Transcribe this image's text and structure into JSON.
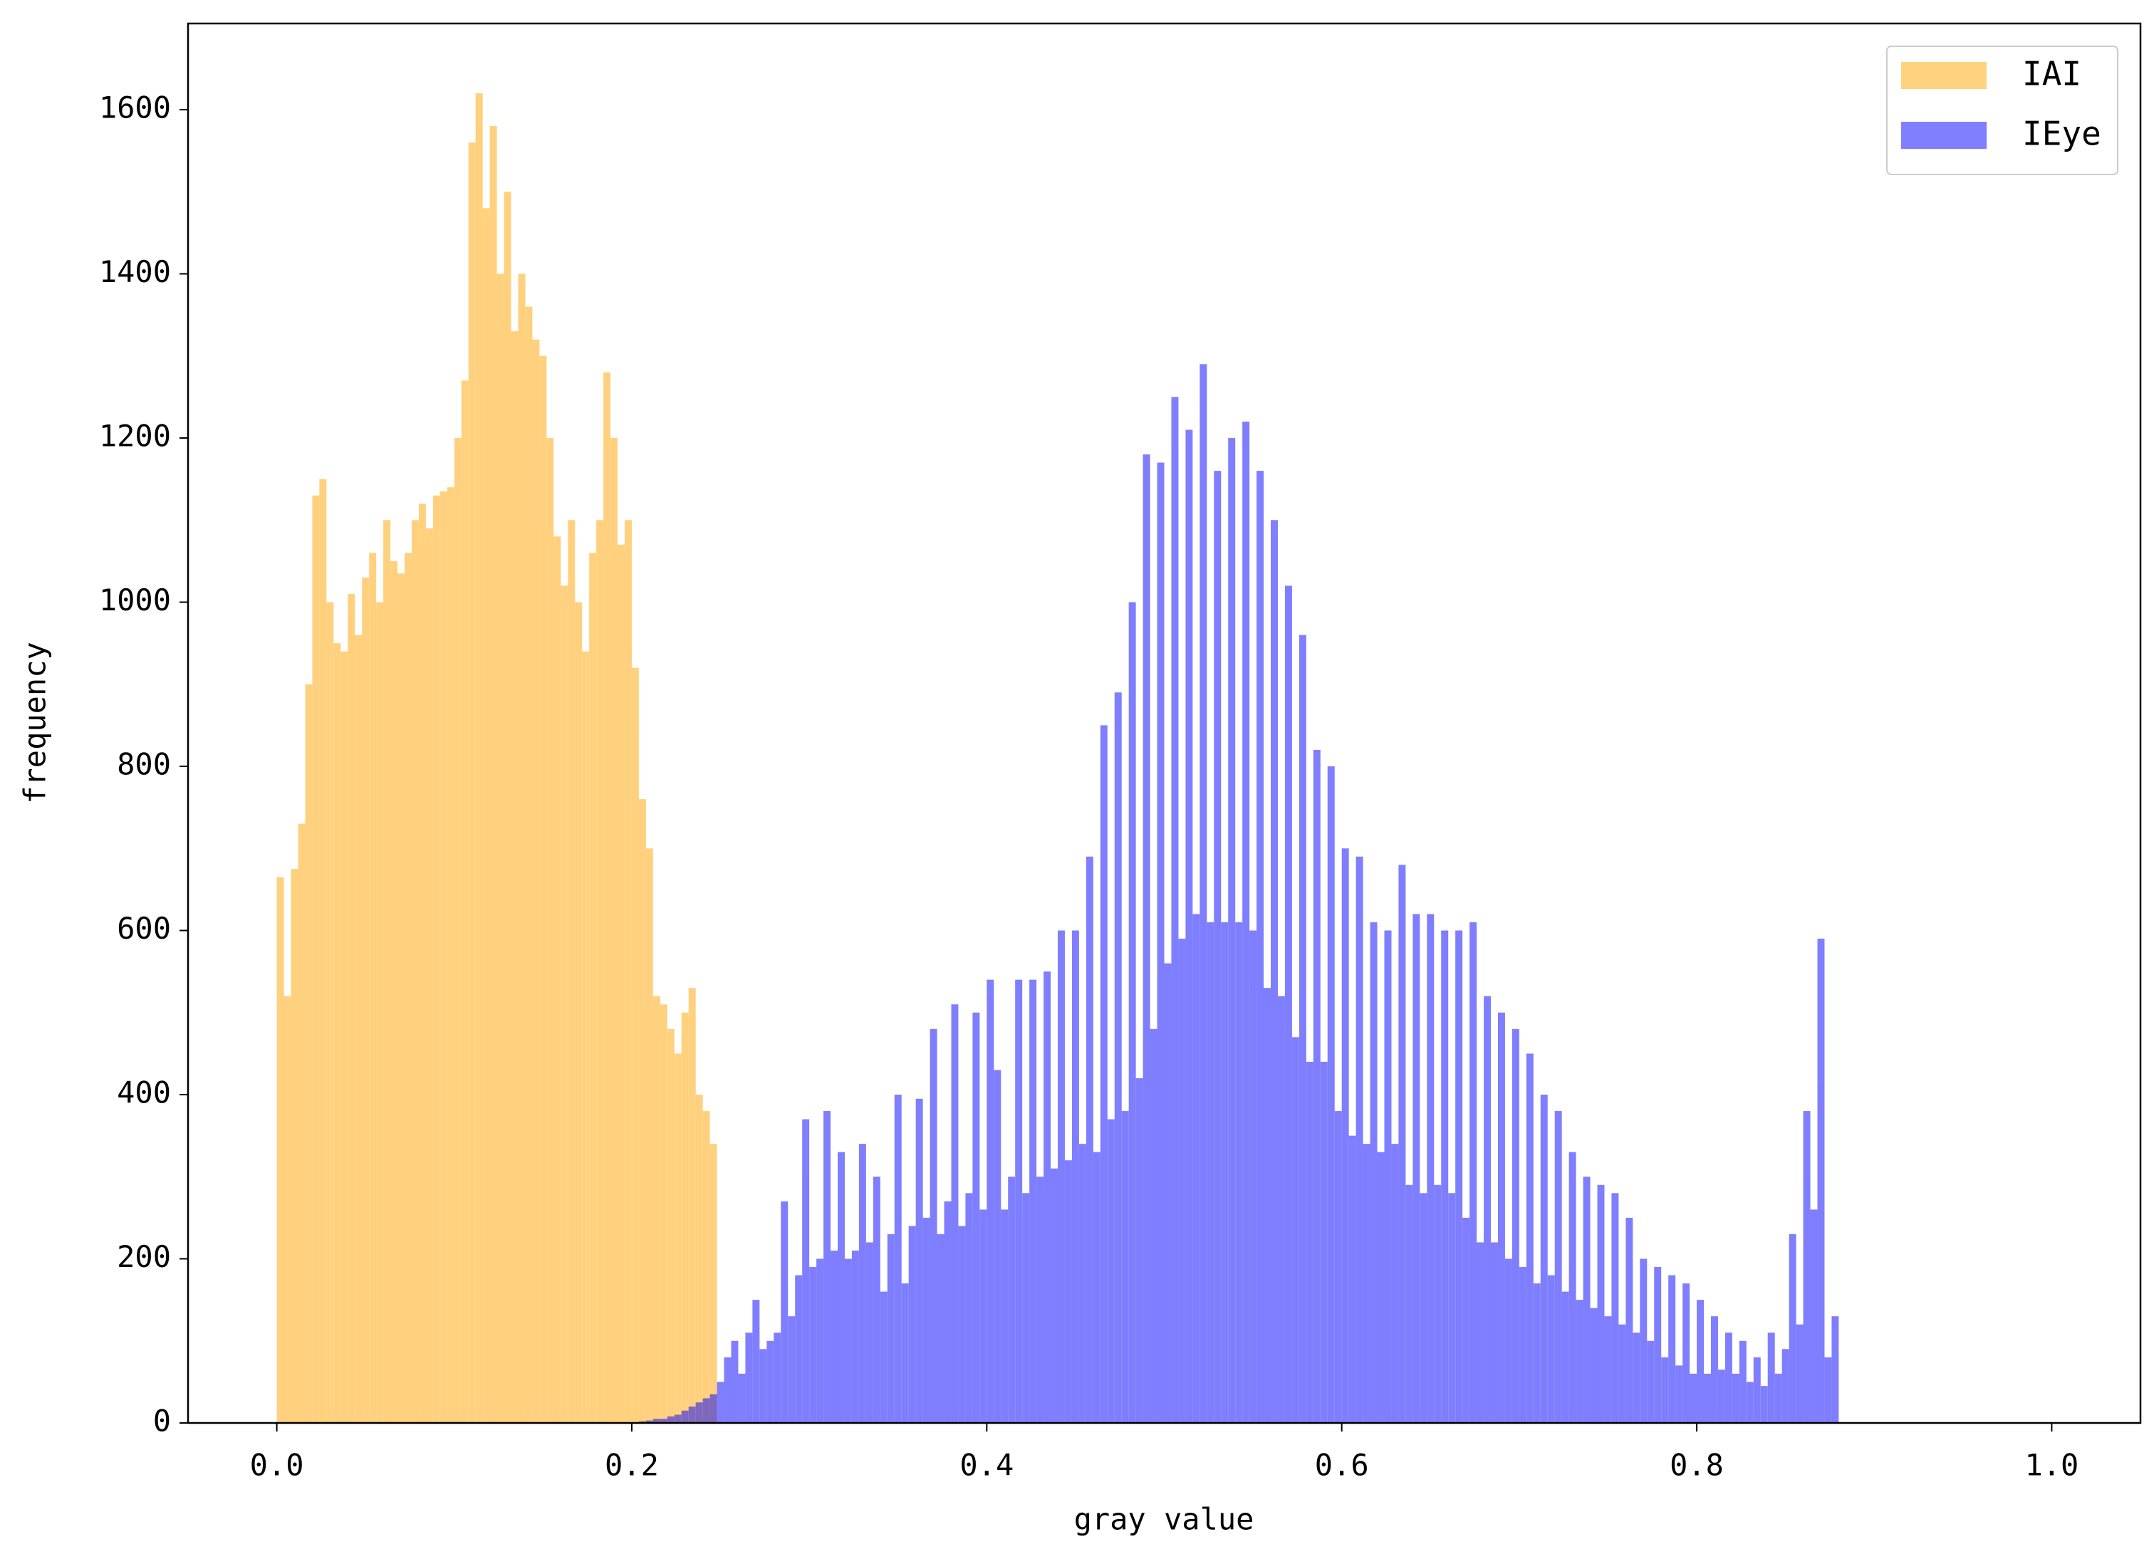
{
  "chart_data": {
    "type": "histogram",
    "xlabel": "gray value",
    "ylabel": "frequency",
    "xlim": [
      -0.05,
      1.05
    ],
    "ylim": [
      0,
      1705
    ],
    "xticks": [
      {
        "value": 0,
        "label": "0.0"
      },
      0.2,
      0.4,
      0.6,
      0.8,
      {
        "value": 1,
        "label": "1.0"
      }
    ],
    "yticks": [
      0,
      200,
      400,
      600,
      800,
      1000,
      1200,
      1400,
      1600
    ],
    "legend": "upper right",
    "opacity": 0.5,
    "series": [
      {
        "name": "IAI",
        "color": "#ffa500",
        "bins": [
          0,
          0.004,
          0.008,
          0.012,
          0.016,
          0.02,
          0.024,
          0.028,
          0.032,
          0.036,
          0.04,
          0.044,
          0.048,
          0.052,
          0.056,
          0.06,
          0.064,
          0.068,
          0.072,
          0.076,
          0.08,
          0.084,
          0.088,
          0.092,
          0.096,
          0.1,
          0.104,
          0.108,
          0.112,
          0.116,
          0.12,
          0.124,
          0.128,
          0.132,
          0.136,
          0.14,
          0.144,
          0.148,
          0.152,
          0.156,
          0.16,
          0.164,
          0.168,
          0.172,
          0.176,
          0.18,
          0.184,
          0.188,
          0.192,
          0.196,
          0.2,
          0.204,
          0.208,
          0.212,
          0.216,
          0.22,
          0.224,
          0.228,
          0.232,
          0.236,
          0.24,
          0.244,
          0.248
        ],
        "values": [
          665,
          520,
          675,
          730,
          900,
          1130,
          1150,
          1000,
          950,
          940,
          1010,
          960,
          1030,
          1060,
          1000,
          1100,
          1050,
          1035,
          1060,
          1100,
          1120,
          1090,
          1130,
          1135,
          1140,
          1200,
          1270,
          1560,
          1620,
          1480,
          1580,
          1400,
          1500,
          1330,
          1400,
          1360,
          1320,
          1300,
          1200,
          1080,
          1020,
          1100,
          1000,
          940,
          1060,
          1100,
          1280,
          1200,
          1070,
          1100,
          920,
          760,
          700,
          520,
          510,
          480,
          450,
          500,
          530,
          400,
          380,
          340
        ]
      },
      {
        "name": "IEye",
        "color": "#0000ff",
        "bins": [
          0.204,
          0.208,
          0.212,
          0.216,
          0.22,
          0.224,
          0.228,
          0.232,
          0.236,
          0.24,
          0.244,
          0.248,
          0.252,
          0.256,
          0.26,
          0.264,
          0.268,
          0.272,
          0.276,
          0.28,
          0.284,
          0.288,
          0.292,
          0.296,
          0.3,
          0.304,
          0.308,
          0.312,
          0.316,
          0.32,
          0.324,
          0.328,
          0.332,
          0.336,
          0.34,
          0.344,
          0.348,
          0.352,
          0.356,
          0.36,
          0.364,
          0.368,
          0.372,
          0.376,
          0.38,
          0.384,
          0.388,
          0.392,
          0.396,
          0.4,
          0.404,
          0.408,
          0.412,
          0.416,
          0.42,
          0.424,
          0.428,
          0.432,
          0.436,
          0.44,
          0.444,
          0.448,
          0.452,
          0.456,
          0.46,
          0.464,
          0.468,
          0.472,
          0.476,
          0.48,
          0.484,
          0.488,
          0.492,
          0.496,
          0.5,
          0.504,
          0.508,
          0.512,
          0.516,
          0.52,
          0.524,
          0.528,
          0.532,
          0.536,
          0.54,
          0.544,
          0.548,
          0.552,
          0.556,
          0.56,
          0.564,
          0.568,
          0.572,
          0.576,
          0.58,
          0.584,
          0.588,
          0.592,
          0.596,
          0.6,
          0.604,
          0.608,
          0.612,
          0.616,
          0.62,
          0.624,
          0.628,
          0.632,
          0.636,
          0.64,
          0.644,
          0.648,
          0.652,
          0.656,
          0.66,
          0.664,
          0.668,
          0.672,
          0.676,
          0.68,
          0.684,
          0.688,
          0.692,
          0.696,
          0.7,
          0.704,
          0.708,
          0.712,
          0.716,
          0.72,
          0.724,
          0.728,
          0.732,
          0.736,
          0.74,
          0.744,
          0.748,
          0.752,
          0.756,
          0.76,
          0.764,
          0.768,
          0.772,
          0.776,
          0.78,
          0.784,
          0.788,
          0.792,
          0.796,
          0.8,
          0.804,
          0.808,
          0.812,
          0.816,
          0.82,
          0.824,
          0.828,
          0.832,
          0.836,
          0.84,
          0.844,
          0.848,
          0.852,
          0.856,
          0.86,
          0.864,
          0.868,
          0.872,
          0.876,
          0.88
        ],
        "values": [
          2,
          3,
          5,
          5,
          8,
          10,
          15,
          20,
          25,
          30,
          35,
          50,
          80,
          100,
          60,
          110,
          150,
          90,
          100,
          110,
          270,
          130,
          180,
          370,
          190,
          200,
          380,
          210,
          330,
          200,
          210,
          340,
          220,
          300,
          160,
          230,
          400,
          170,
          240,
          395,
          250,
          480,
          230,
          270,
          510,
          240,
          280,
          500,
          260,
          540,
          430,
          260,
          300,
          540,
          280,
          540,
          300,
          550,
          310,
          600,
          320,
          600,
          340,
          690,
          330,
          850,
          370,
          890,
          380,
          1000,
          420,
          1180,
          480,
          1170,
          560,
          1250,
          590,
          1210,
          620,
          1290,
          610,
          1160,
          610,
          1200,
          610,
          1220,
          600,
          1160,
          530,
          1100,
          520,
          1020,
          470,
          960,
          440,
          820,
          440,
          800,
          380,
          700,
          350,
          690,
          340,
          610,
          330,
          600,
          340,
          680,
          290,
          620,
          280,
          620,
          290,
          600,
          280,
          600,
          250,
          610,
          220,
          520,
          220,
          500,
          200,
          480,
          190,
          450,
          170,
          400,
          180,
          380,
          160,
          330,
          150,
          300,
          140,
          290,
          130,
          280,
          120,
          250,
          110,
          200,
          100,
          190,
          80,
          180,
          70,
          170,
          60,
          150,
          60,
          130,
          65,
          110,
          60,
          100,
          50,
          80,
          45,
          110,
          60,
          90,
          230,
          120,
          380,
          260,
          590,
          80,
          130
        ]
      }
    ]
  }
}
